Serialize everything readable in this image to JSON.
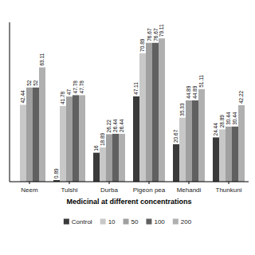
{
  "chart_data": {
    "type": "bar",
    "x_label": "Medicinal at different concentrations",
    "categories": [
      "Neem",
      "Tulshi",
      "Durba",
      "Pigeon pea",
      "Mehandi",
      "Thunkuni"
    ],
    "series": [
      {
        "name": "Control",
        "color": "#3a3a3a",
        "values": [
          0,
          0.89,
          16,
          47.11,
          20.67,
          24.44
        ]
      },
      {
        "name": "10",
        "color": "#c8c8c8",
        "values": [
          42.44,
          41.78,
          18.89,
          70.89,
          35.33,
          28.89
        ]
      },
      {
        "name": "50",
        "color": "#a0a0a0",
        "values": [
          52,
          47,
          26.22,
          76.67,
          44.89,
          30.44
        ]
      },
      {
        "name": "100",
        "color": "#606060",
        "values": [
          52,
          47.78,
          26.44,
          76.67,
          44.89,
          30.44
        ]
      },
      {
        "name": "200",
        "color": "#b0b0b0",
        "values": [
          63.11,
          47.78,
          26.44,
          79.11,
          51.11,
          42.22
        ]
      }
    ],
    "ylim": [
      0,
      88
    ],
    "tick_labels": "x",
    "data_labels": true,
    "grid": false,
    "legend": "bottom"
  }
}
